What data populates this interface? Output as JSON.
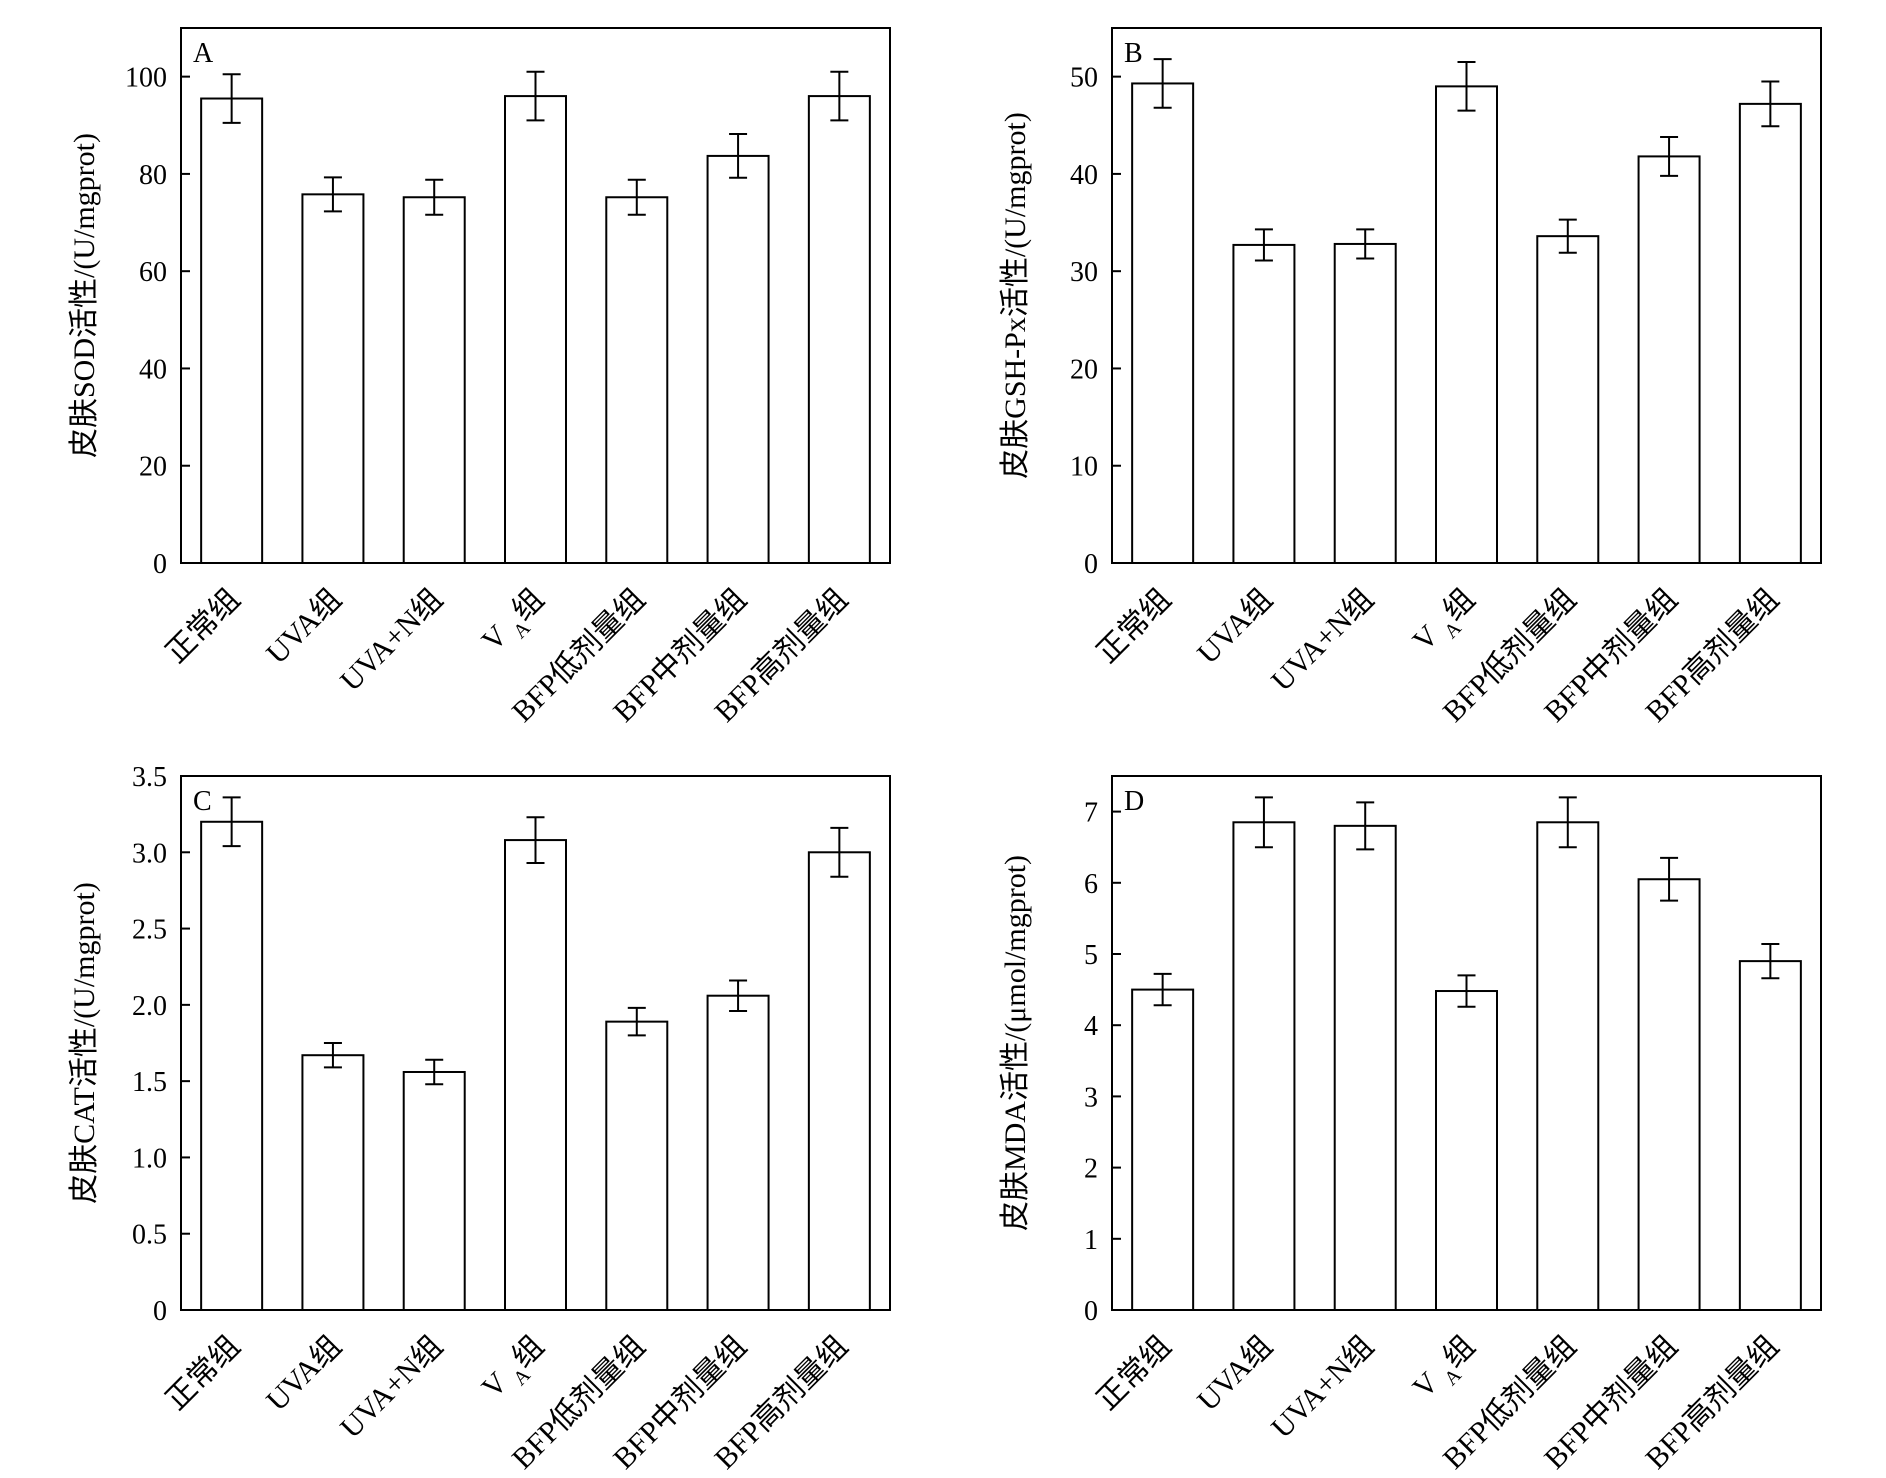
{
  "categories": [
    "正常组",
    "UVA组",
    "UVA+N组",
    "V_A组",
    "BFP低剂量组",
    "BFP中剂量组",
    "BFP高剂量组"
  ],
  "chart_data": [
    {
      "type": "bar",
      "panel": "A",
      "ylabel": "皮肤SOD活性/(U/mgprot)",
      "xlabel": "",
      "ylim": [
        0,
        110
      ],
      "yticks": [
        "0",
        "20",
        "40",
        "60",
        "80",
        "100"
      ],
      "yticks_values": [
        0,
        20,
        40,
        60,
        80,
        100
      ],
      "categories": [
        "正常组",
        "UVA组",
        "UVA+N组",
        "V_A组",
        "BFP低剂量组",
        "BFP中剂量组",
        "BFP高剂量组"
      ],
      "values": [
        95.5,
        75.8,
        75.2,
        96.0,
        75.2,
        83.7,
        96.0
      ],
      "errors": [
        5.0,
        3.5,
        3.6,
        5.0,
        3.6,
        4.5,
        5.0
      ]
    },
    {
      "type": "bar",
      "panel": "B",
      "ylabel": "皮肤GSH-Px活性/(U/mgprot)",
      "xlabel": "",
      "ylim": [
        0,
        55
      ],
      "yticks": [
        "0",
        "10",
        "20",
        "30",
        "40",
        "50"
      ],
      "yticks_values": [
        0,
        10,
        20,
        30,
        40,
        50
      ],
      "categories": [
        "正常组",
        "UVA组",
        "UVA+N组",
        "V_A组",
        "BFP低剂量组",
        "BFP中剂量组",
        "BFP高剂量组"
      ],
      "values": [
        49.3,
        32.7,
        32.8,
        49.0,
        33.6,
        41.8,
        47.2
      ],
      "errors": [
        2.5,
        1.6,
        1.5,
        2.5,
        1.7,
        2.0,
        2.3
      ]
    },
    {
      "type": "bar",
      "panel": "C",
      "ylabel": "皮肤CAT活性/(U/mgprot)",
      "xlabel": "",
      "ylim": [
        0,
        3.5
      ],
      "yticks": [
        "0",
        "0.5",
        "1.0",
        "1.5",
        "2.0",
        "2.5",
        "3.0",
        "3.5"
      ],
      "yticks_values": [
        0,
        0.5,
        1.0,
        1.5,
        2.0,
        2.5,
        3.0,
        3.5
      ],
      "categories": [
        "正常组",
        "UVA组",
        "UVA+N组",
        "V_A组",
        "BFP低剂量组",
        "BFP中剂量组",
        "BFP高剂量组"
      ],
      "values": [
        3.2,
        1.67,
        1.56,
        3.08,
        1.89,
        2.06,
        3.0
      ],
      "errors": [
        0.16,
        0.08,
        0.08,
        0.15,
        0.09,
        0.1,
        0.16
      ]
    },
    {
      "type": "bar",
      "panel": "D",
      "ylabel": "皮肤MDA活性/(μmol/mgprot)",
      "xlabel": "",
      "ylim": [
        0,
        7.5
      ],
      "yticks": [
        "0",
        "1",
        "2",
        "3",
        "4",
        "5",
        "6",
        "7"
      ],
      "yticks_values": [
        0,
        1,
        2,
        3,
        4,
        5,
        6,
        7
      ],
      "categories": [
        "正常组",
        "UVA组",
        "UVA+N组",
        "V_A组",
        "BFP低剂量组",
        "BFP中剂量组",
        "BFP高剂量组"
      ],
      "values": [
        4.5,
        6.85,
        6.8,
        4.48,
        6.85,
        6.05,
        4.9
      ],
      "errors": [
        0.22,
        0.35,
        0.33,
        0.22,
        0.35,
        0.3,
        0.24
      ]
    }
  ],
  "colors": {
    "bar_fill": "#ffffff",
    "stroke": "#000000"
  }
}
